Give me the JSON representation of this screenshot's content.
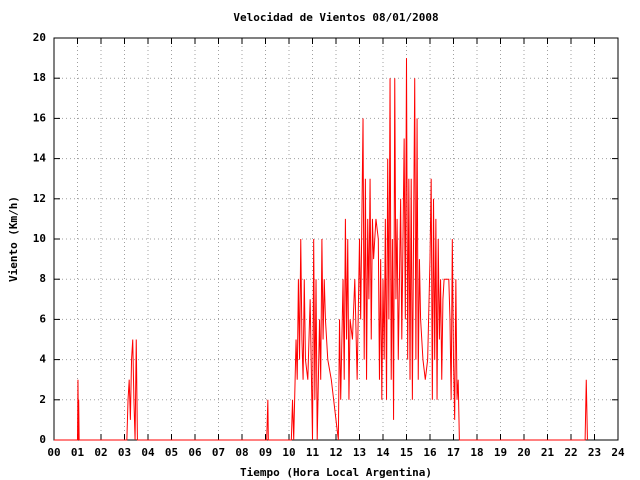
{
  "chart_data": {
    "type": "line",
    "title": "Velocidad de Vientos 08/01/2008",
    "x_label": "Tiempo (Hora Local Argentina)",
    "y_label": "Viento (Km/h)",
    "xlim": [
      0,
      24
    ],
    "ylim": [
      0,
      20
    ],
    "xticks": [
      {
        "value": 0,
        "label": "00"
      },
      {
        "value": 1,
        "label": "01"
      },
      {
        "value": 2,
        "label": "02"
      },
      {
        "value": 3,
        "label": "03"
      },
      {
        "value": 4,
        "label": "04"
      },
      {
        "value": 5,
        "label": "05"
      },
      {
        "value": 6,
        "label": "06"
      },
      {
        "value": 7,
        "label": "07"
      },
      {
        "value": 8,
        "label": "08"
      },
      {
        "value": 9,
        "label": "09"
      },
      {
        "value": 10,
        "label": "10"
      },
      {
        "value": 11,
        "label": "11"
      },
      {
        "value": 12,
        "label": "12"
      },
      {
        "value": 13,
        "label": "13"
      },
      {
        "value": 14,
        "label": "14"
      },
      {
        "value": 15,
        "label": "15"
      },
      {
        "value": 16,
        "label": "16"
      },
      {
        "value": 17,
        "label": "17"
      },
      {
        "value": 18,
        "label": "18"
      },
      {
        "value": 19,
        "label": "19"
      },
      {
        "value": 20,
        "label": "20"
      },
      {
        "value": 21,
        "label": "21"
      },
      {
        "value": 22,
        "label": "22"
      },
      {
        "value": 23,
        "label": "23"
      },
      {
        "value": 24,
        "label": "24"
      }
    ],
    "yticks": [
      0,
      2,
      4,
      6,
      8,
      10,
      12,
      14,
      16,
      18,
      20
    ],
    "grid": true,
    "x": [
      0,
      1.0,
      1.02,
      1.04,
      1.05,
      1.07,
      3.1,
      3.15,
      3.2,
      3.25,
      3.3,
      3.35,
      3.4,
      3.45,
      3.5,
      3.55,
      9.05,
      9.1,
      9.12,
      10.1,
      10.15,
      10.2,
      10.3,
      10.35,
      10.4,
      10.45,
      10.5,
      10.55,
      10.6,
      10.65,
      10.7,
      10.8,
      10.9,
      11.0,
      11.05,
      11.1,
      11.15,
      11.2,
      11.3,
      11.35,
      11.4,
      11.45,
      11.5,
      11.55,
      11.65,
      11.8,
      12.0,
      12.1,
      12.15,
      12.2,
      12.3,
      12.35,
      12.4,
      12.45,
      12.5,
      12.55,
      12.6,
      12.7,
      12.8,
      12.9,
      13.0,
      13.05,
      13.1,
      13.15,
      13.2,
      13.25,
      13.3,
      13.35,
      13.4,
      13.45,
      13.5,
      13.55,
      13.6,
      13.7,
      13.8,
      13.85,
      13.9,
      13.95,
      14.0,
      14.05,
      14.1,
      14.15,
      14.2,
      14.25,
      14.3,
      14.35,
      14.4,
      14.45,
      14.5,
      14.55,
      14.6,
      14.65,
      14.7,
      14.75,
      14.8,
      14.85,
      14.9,
      14.95,
      15.0,
      15.05,
      15.1,
      15.15,
      15.2,
      15.25,
      15.3,
      15.35,
      15.4,
      15.45,
      15.5,
      15.55,
      15.6,
      15.7,
      15.8,
      15.9,
      16.0,
      16.05,
      16.1,
      16.15,
      16.2,
      16.25,
      16.3,
      16.35,
      16.4,
      16.45,
      16.5,
      16.55,
      16.6,
      16.7,
      16.8,
      16.85,
      16.9,
      16.95,
      17.0,
      17.05,
      17.1,
      17.15,
      17.2,
      17.25,
      22.6,
      22.65,
      22.7
    ],
    "series": [
      {
        "name": "Viento",
        "color": "#ff0000",
        "values": [
          0,
          0,
          3,
          0,
          2,
          0,
          0,
          2,
          3,
          1,
          4,
          5,
          2,
          0,
          5,
          0,
          0,
          2,
          0,
          0,
          2,
          0,
          5,
          3,
          8,
          4,
          10,
          5,
          3,
          8,
          4,
          3,
          7,
          0,
          10,
          2,
          8,
          0,
          6,
          3,
          10,
          5,
          8,
          6,
          4,
          3,
          1,
          0,
          6,
          2,
          8,
          3,
          11,
          5,
          10,
          2,
          6,
          5,
          8,
          3,
          10,
          6,
          11,
          16,
          4,
          13,
          3,
          11,
          7,
          13,
          5,
          11,
          9,
          11,
          10,
          3,
          9,
          2,
          8,
          4,
          11,
          2,
          14,
          6,
          18,
          3,
          10,
          1,
          18,
          7,
          11,
          4,
          8,
          12,
          5,
          10,
          15,
          6,
          19,
          4,
          13,
          3,
          13,
          2,
          10,
          18,
          4,
          16,
          3,
          9,
          6,
          4,
          3,
          4,
          9,
          13,
          2,
          12,
          4,
          11,
          2,
          10,
          5,
          8,
          3,
          7,
          8,
          8,
          8,
          6,
          2,
          10,
          4,
          1,
          8,
          2,
          3,
          0,
          0,
          3,
          0
        ]
      }
    ]
  }
}
